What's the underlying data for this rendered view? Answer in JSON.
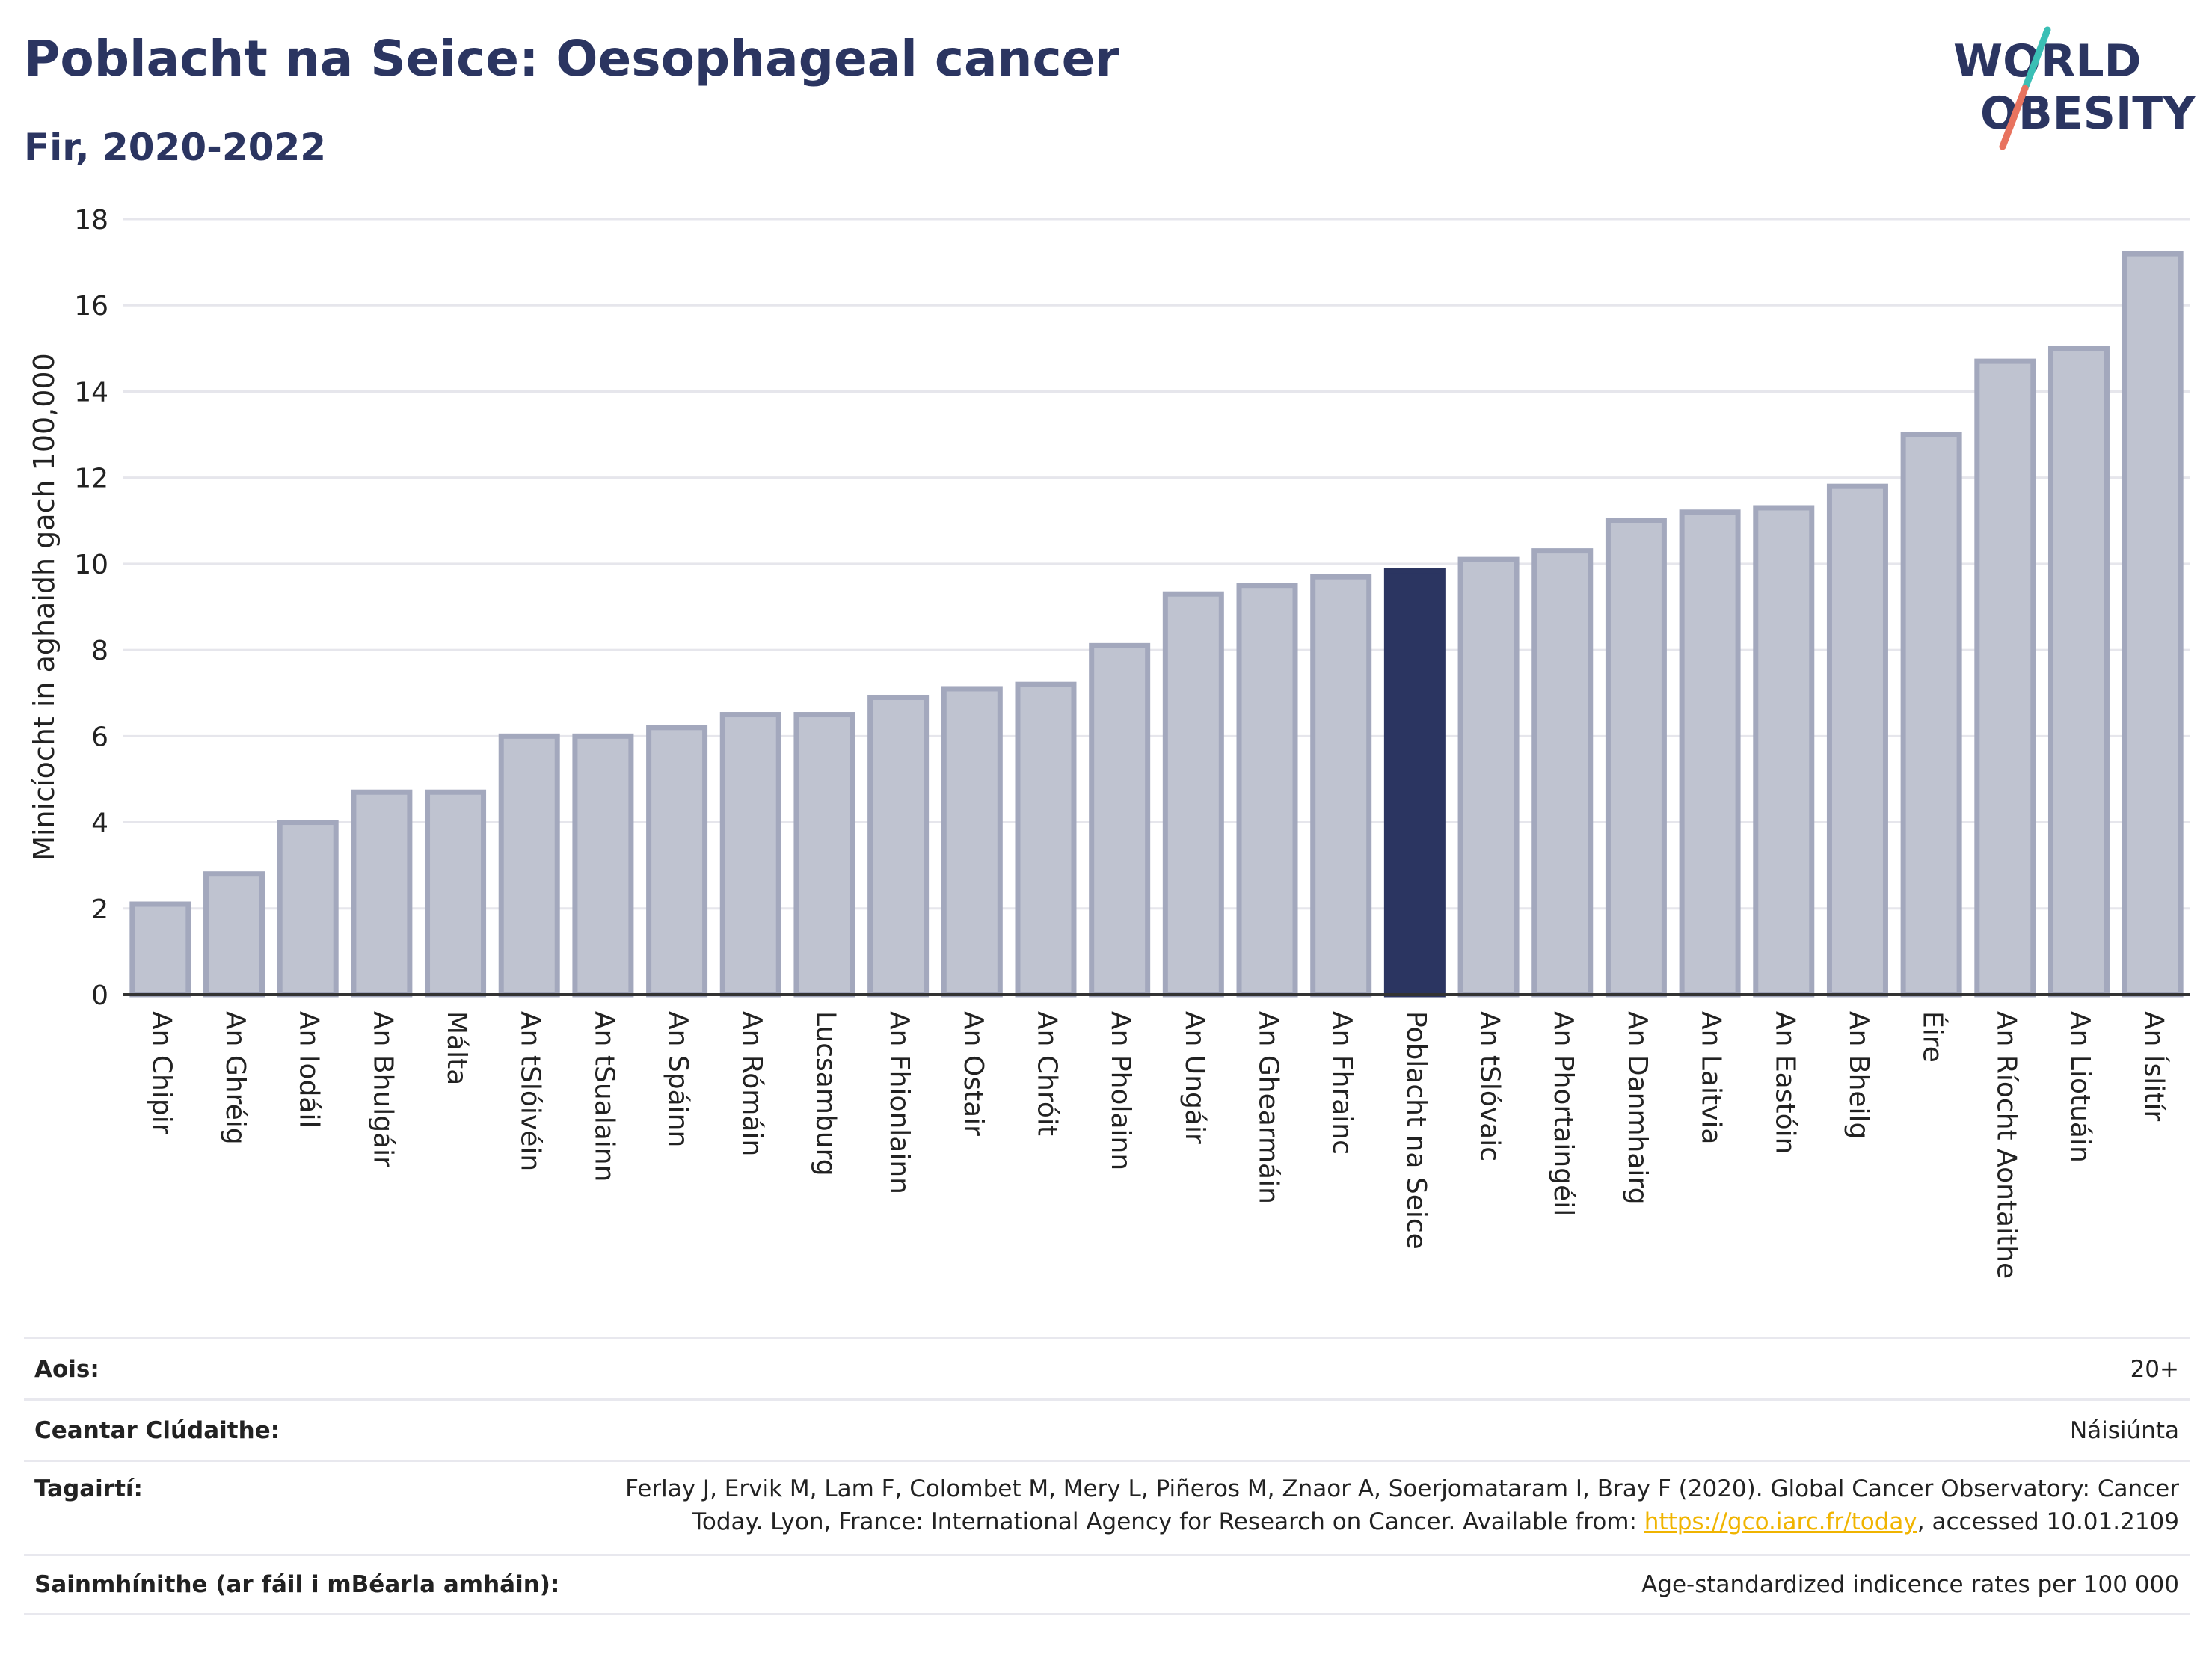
{
  "header": {
    "title": "Poblacht na Seice: Oesophageal cancer",
    "subtitle": "Fir, 2020-2022",
    "logo_line1": "WORLD",
    "logo_line2": "OBESITY"
  },
  "colors": {
    "title": "#2b3561",
    "bar_default": "#bfc3d0",
    "bar_default_stroke": "#a3a8bd",
    "bar_highlight": "#2b3561",
    "gridline": "#e6e6ec",
    "logo_teal": "#3bbfb5",
    "logo_coral": "#e8735f",
    "link": "#f0b400"
  },
  "chart_data": {
    "type": "bar",
    "ylabel": "Minicíocht in aghaidh gach 100,000",
    "xlabel": "",
    "ylim": [
      0,
      18
    ],
    "yticks": [
      0,
      2,
      4,
      6,
      8,
      10,
      12,
      14,
      16,
      18
    ],
    "grid": true,
    "highlight": "Poblacht na Seice",
    "categories": [
      "An Chipir",
      "An Ghréig",
      "An Iodáil",
      "An Bhulgáir",
      "Málta",
      "An tSlóivéin",
      "An tSualainn",
      "An Spáinn",
      "An Rómáin",
      "Lucsamburg",
      "An Fhionlainn",
      "An Ostair",
      "An Chróit",
      "An Pholainn",
      "An Ungáir",
      "An Ghearmáin",
      "An Fhrainc",
      "Poblacht na Seice",
      "An tSlóvaic",
      "An Phortaingéil",
      "An Danmhairg",
      "An Laitvia",
      "An Eastóin",
      "An Bheilg",
      "Éire",
      "An Ríocht Aontaithe",
      "An Liotuáin",
      "An Íslitír"
    ],
    "values": [
      2.1,
      2.8,
      4.0,
      4.7,
      4.7,
      6.0,
      6.0,
      6.2,
      6.5,
      6.5,
      6.9,
      7.1,
      7.2,
      8.1,
      9.3,
      9.5,
      9.7,
      9.85,
      10.1,
      10.3,
      11.0,
      11.2,
      11.3,
      11.8,
      13.0,
      14.7,
      15.0,
      17.2
    ]
  },
  "info": {
    "age_label": "Aois:",
    "age_value": "20+",
    "coverage_label": "Ceantar Clúdaithe:",
    "coverage_value": "Náisiúnta",
    "refs_label": "Tagairtí:",
    "refs_text_1": "Ferlay J, Ervik M, Lam F, Colombet M, Mery L, Piñeros M, Znaor A, Soerjomataram I, Bray F (2020). Global Cancer Observatory: Cancer",
    "refs_text_2": "Today. Lyon, France: International Agency for Research on Cancer. Available from: ",
    "refs_link": "https://gco.iarc.fr/today",
    "refs_text_3": ", accessed 10.01.2109",
    "defs_label": "Sainmhínithe (ar fáil i mBéarla amháin):",
    "defs_value": "Age-standardized indicence rates per 100 000"
  }
}
